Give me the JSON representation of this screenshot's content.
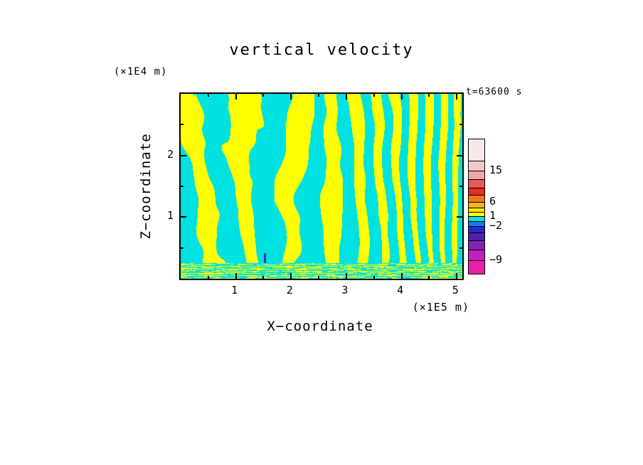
{
  "page": {
    "background": "#ffffff"
  },
  "chart_data": {
    "type": "heatmap",
    "title": "vertical velocity",
    "time_label": "t=63600 s",
    "xlabel": "X−coordinate",
    "x_unit": "(×1E5 m)",
    "ylabel": "Z−coordinate",
    "y_unit": "(×1E4 m)",
    "xlim": [
      0,
      5.1
    ],
    "ylim": [
      0,
      3.0
    ],
    "x_ticks": [
      1,
      2,
      3,
      4,
      5
    ],
    "y_ticks": [
      1,
      2
    ],
    "x_minor_step": 0.5,
    "y_minor_step": 0.5,
    "field": {
      "description": "Filled two-level contour field of vertical velocity: yellow regions are positive updrafts, cyan regions are negative downdrafts. Large wavy cells on the left, fine slanted striations toward the right, thin speckled layering along the bottom boundary.",
      "positive_color": "#FFFF00",
      "negative_color": "#00E1E1",
      "pattern": {
        "base_cycles": 4,
        "chirp_cycles": 6.7,
        "tilt_amp": 3.2,
        "distort_amp_left": 10,
        "distort_falloff": 7,
        "threshold_base": 0.12,
        "threshold_slope": 0.55,
        "bottom_band_frac": 0.085
      },
      "anomaly_marks": [
        {
          "x_frac": 0.298,
          "z_frac": 0.1,
          "color": "#5522AA",
          "w": 3,
          "h": 14
        }
      ]
    },
    "colorbar": {
      "levels": [
        -9,
        -2,
        1,
        6,
        15
      ],
      "segments": [
        {
          "color": "#F8E8E8",
          "h": 30,
          "label": ""
        },
        {
          "color": "#F4C8C8",
          "h": 14,
          "label": "15"
        },
        {
          "color": "#EFA6A6",
          "h": 12,
          "label": ""
        },
        {
          "color": "#E85858",
          "h": 12,
          "label": ""
        },
        {
          "color": "#E03020",
          "h": 10,
          "label": ""
        },
        {
          "color": "#F07818",
          "h": 10,
          "label": "6"
        },
        {
          "color": "#F8B018",
          "h": 8,
          "label": ""
        },
        {
          "color": "#F8E800",
          "h": 6,
          "label": ""
        },
        {
          "color": "#FFFF00",
          "h": 6,
          "label": "1"
        },
        {
          "color": "#00E1E1",
          "h": 7,
          "label": ""
        },
        {
          "color": "#1878F0",
          "h": 7,
          "label": "−2"
        },
        {
          "color": "#2828C8",
          "h": 9,
          "label": ""
        },
        {
          "color": "#5020A8",
          "h": 11,
          "label": ""
        },
        {
          "color": "#8820B8",
          "h": 13,
          "label": ""
        },
        {
          "color": "#C020C0",
          "h": 15,
          "label": "−9"
        },
        {
          "color": "#E820A8",
          "h": 19,
          "label": ""
        }
      ]
    }
  }
}
